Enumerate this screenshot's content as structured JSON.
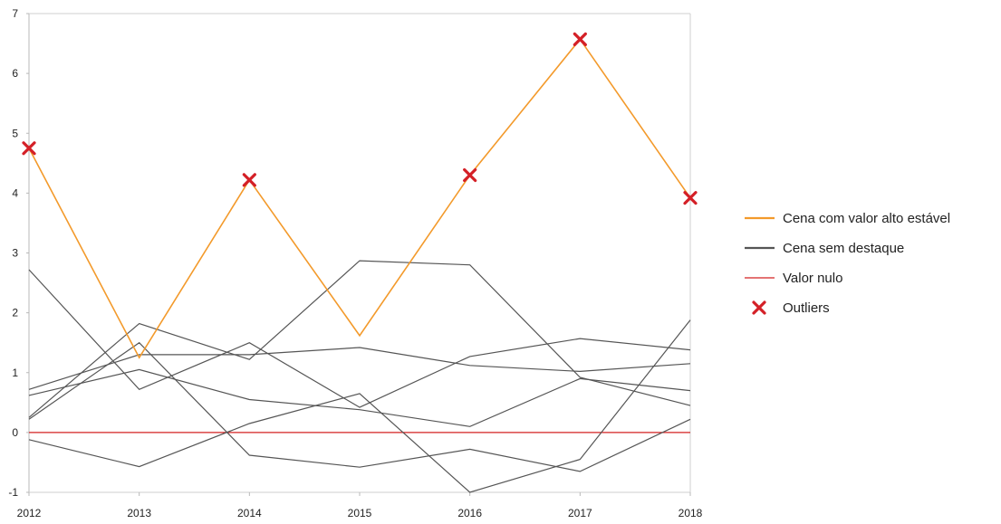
{
  "chart_data": {
    "type": "line",
    "x": [
      "2012",
      "2013",
      "2014",
      "2015",
      "2016",
      "2017",
      "2018"
    ],
    "ylim": [
      -1,
      7
    ],
    "yticks": [
      "-1",
      "0",
      "1",
      "2",
      "3",
      "4",
      "5",
      "6",
      "7"
    ],
    "grid": false,
    "legend_position": "right",
    "legend": [
      {
        "label": "Cena com valor alto estável",
        "kind": "line",
        "color": "#f39a2b"
      },
      {
        "label": "Cena sem destaque",
        "kind": "line",
        "color": "#555555"
      },
      {
        "label": "Valor nulo",
        "kind": "line",
        "color": "#d42020"
      },
      {
        "label": "Outliers",
        "kind": "x-marker",
        "color": "#d42027"
      }
    ],
    "highlight_series": {
      "values": [
        4.75,
        1.25,
        4.22,
        1.62,
        4.3,
        6.57,
        3.92
      ],
      "color": "#f39a2b",
      "outlier_points": [
        {
          "x": "2012",
          "y": 4.75
        },
        {
          "x": "2014",
          "y": 4.22
        },
        {
          "x": "2016",
          "y": 4.3
        },
        {
          "x": "2017",
          "y": 6.57
        },
        {
          "x": "2018",
          "y": 3.92
        }
      ]
    },
    "background_series_color": "#555555",
    "background_series": [
      {
        "values": [
          2.72,
          0.72,
          1.5,
          0.42,
          1.27,
          1.57,
          1.38
        ]
      },
      {
        "values": [
          0.22,
          1.5,
          -0.38,
          -0.58,
          -0.28,
          -0.65,
          0.22
        ]
      },
      {
        "values": [
          0.62,
          1.05,
          0.55,
          0.38,
          0.1,
          0.9,
          0.7
        ]
      },
      {
        "values": [
          0.25,
          1.82,
          1.22,
          2.87,
          2.8,
          0.92,
          0.45
        ]
      },
      {
        "values": [
          0.72,
          1.3,
          1.3,
          1.42,
          1.12,
          1.02,
          1.15
        ]
      },
      {
        "values": [
          -0.12,
          -0.57,
          0.15,
          0.65,
          -1.0,
          -0.45,
          1.88
        ]
      }
    ],
    "zero_line": {
      "value": 0,
      "color": "#d42020"
    }
  }
}
